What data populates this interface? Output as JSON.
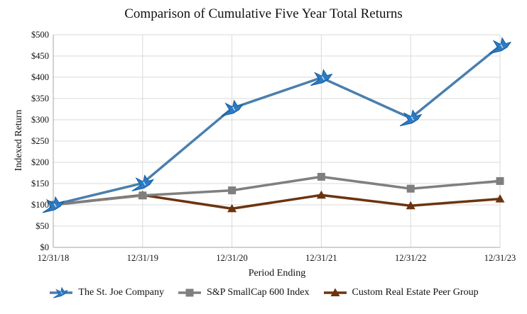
{
  "chart_data": {
    "type": "line",
    "title": "Comparison of Cumulative Five Year Total Returns",
    "xlabel": "Period Ending",
    "ylabel": "Indexed Return",
    "categories": [
      "12/31/18",
      "12/31/19",
      "12/31/20",
      "12/31/21",
      "12/31/22",
      "12/31/23"
    ],
    "ylim": [
      0,
      500
    ],
    "yticks": [
      0,
      50,
      100,
      150,
      200,
      250,
      300,
      350,
      400,
      450,
      500
    ],
    "ytick_labels": [
      "$0",
      "$50",
      "$100",
      "$150",
      "$200",
      "$250",
      "$300",
      "$350",
      "$400",
      "$450",
      "$500"
    ],
    "grid": true,
    "legend_position": "bottom",
    "series": [
      {
        "name": "The St. Joe Company",
        "color": "#4a7fad",
        "marker": "bird-icon",
        "values": [
          100,
          151,
          327,
          399,
          304,
          474
        ]
      },
      {
        "name": "S&P SmallCap 600 Index",
        "color": "#7f7f7f",
        "marker": "square",
        "values": [
          100,
          122,
          134,
          166,
          138,
          156
        ]
      },
      {
        "name": "Custom Real Estate Peer Group",
        "color": "#6b3410",
        "marker": "triangle",
        "values": [
          100,
          123,
          91,
          123,
          98,
          114
        ]
      }
    ]
  }
}
